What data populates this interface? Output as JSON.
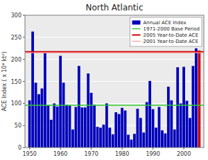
{
  "chart_data": {
    "type": "bar",
    "title": "North Atlantic",
    "ylabel": "ACE Index ( x 10⁴ kt²)",
    "x": [
      1950,
      1951,
      1952,
      1953,
      1954,
      1955,
      1956,
      1957,
      1958,
      1959,
      1960,
      1961,
      1962,
      1963,
      1964,
      1965,
      1966,
      1967,
      1968,
      1969,
      1970,
      1971,
      1972,
      1973,
      1974,
      1975,
      1976,
      1977,
      1978,
      1979,
      1980,
      1981,
      1982,
      1983,
      1984,
      1985,
      1986,
      1987,
      1988,
      1989,
      1990,
      1991,
      1992,
      1993,
      1994,
      1995,
      1996,
      1997,
      1998,
      1999,
      2000,
      2001,
      2002,
      2003,
      2004,
      2005
    ],
    "series": [
      {
        "name": "Annual ACE Index",
        "color": "#0000bb",
        "colors": [
          "#0000bb",
          "#0000bb",
          "#0000bb",
          "#0000bb",
          "#0000bb",
          "#0000bb",
          "#0000bb",
          "#0000bb",
          "#0000bb",
          "#0000bb",
          "#0000bb",
          "#0000bb",
          "#0000bb",
          "#0000bb",
          "#0000bb",
          "#0000bb",
          "#0000bb",
          "#0000bb",
          "#0000bb",
          "#0000bb",
          "#0000bb",
          "#0000bb",
          "#0000bb",
          "#0000bb",
          "#0000bb",
          "#0000bb",
          "#0000bb",
          "#0000bb",
          "#0000bb",
          "#0000bb",
          "#0000bb",
          "#0000bb",
          "#0000bb",
          "#0000bb",
          "#0000bb",
          "#0000bb",
          "#0000bb",
          "#0000bb",
          "#0000bb",
          "#0000bb",
          "#0000bb",
          "#0000bb",
          "#0000bb",
          "#0000bb",
          "#0000bb",
          "#0000bb",
          "#0000bb",
          "#0000bb",
          "#0000bb",
          "#0000bb",
          "#0000bb",
          "#0000bb",
          "#0000bb",
          "#0000bb",
          "#0000bb",
          "#cc0000"
        ],
        "values": [
          107,
          263,
          147,
          121,
          134,
          214,
          96,
          63,
          100,
          93,
          208,
          147,
          97,
          96,
          41,
          92,
          185,
          91,
          91,
          168,
          124,
          97,
          47,
          45,
          52,
          100,
          45,
          30,
          80,
          76,
          90,
          84,
          29,
          18,
          31,
          88,
          67,
          34,
          103,
          151,
          87,
          45,
          92,
          39,
          32,
          138,
          107,
          41,
          182,
          100,
          183,
          106,
          67,
          185,
          225,
          220
        ]
      }
    ],
    "reference_lines": [
      {
        "name": "1971-2000 Base Period",
        "color": "#33cc33",
        "value": 96
      },
      {
        "name": "2005 Year-to-Date ACE",
        "color": "#cc0000",
        "value": 217
      },
      {
        "name": "2001 Year-to-Date ACE",
        "color": "#ff9999",
        "value": 215
      }
    ],
    "xlim": [
      1948.5,
      2006.5
    ],
    "xticks": [
      1950,
      1960,
      1970,
      1980,
      1990,
      2000
    ],
    "ylim": [
      0,
      300
    ],
    "yticks": [
      0,
      50,
      100,
      150,
      200,
      250,
      300
    ],
    "grid": true,
    "legend": "upper right"
  }
}
